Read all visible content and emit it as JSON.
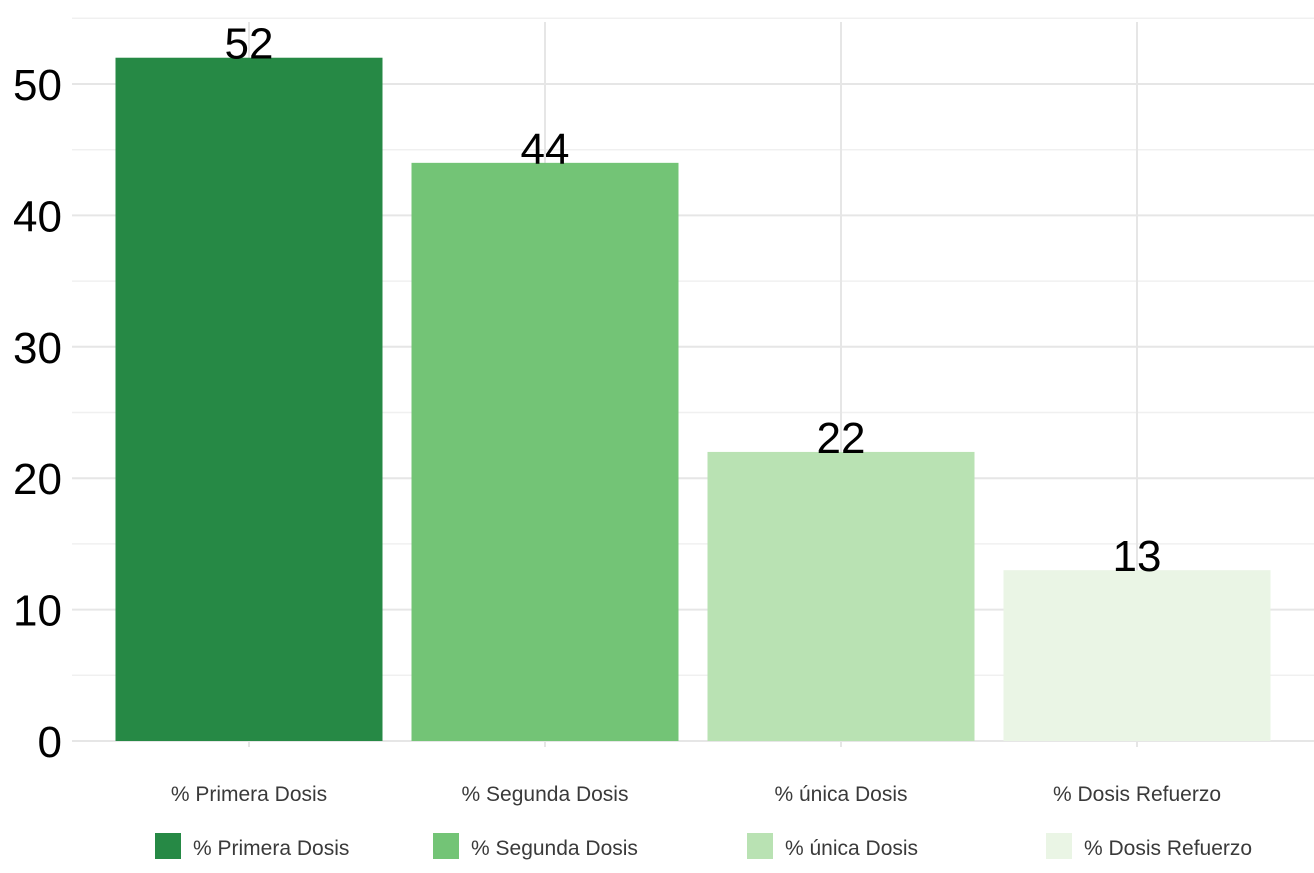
{
  "chart_data": {
    "type": "bar",
    "categories": [
      "% Primera Dosis",
      "% Segunda Dosis",
      "% única Dosis",
      "% Dosis Refuerzo"
    ],
    "values": [
      52,
      44,
      22,
      13
    ],
    "data_labels": [
      "52",
      "44",
      "22",
      "13"
    ],
    "colors": [
      "#268945",
      "#73c476",
      "#b9e2b3",
      "#eaf5e5"
    ],
    "title": "",
    "xlabel": "",
    "ylabel": "",
    "ylim": [
      0,
      55
    ],
    "yticks": [
      0,
      10,
      20,
      30,
      40,
      50
    ],
    "ytick_labels": [
      "0",
      "10",
      "20",
      "30",
      "40",
      "50"
    ],
    "grid": true,
    "legend": {
      "position": "bottom",
      "entries": [
        "% Primera Dosis",
        "% Segunda Dosis",
        "% única Dosis",
        "% Dosis Refuerzo"
      ]
    }
  }
}
